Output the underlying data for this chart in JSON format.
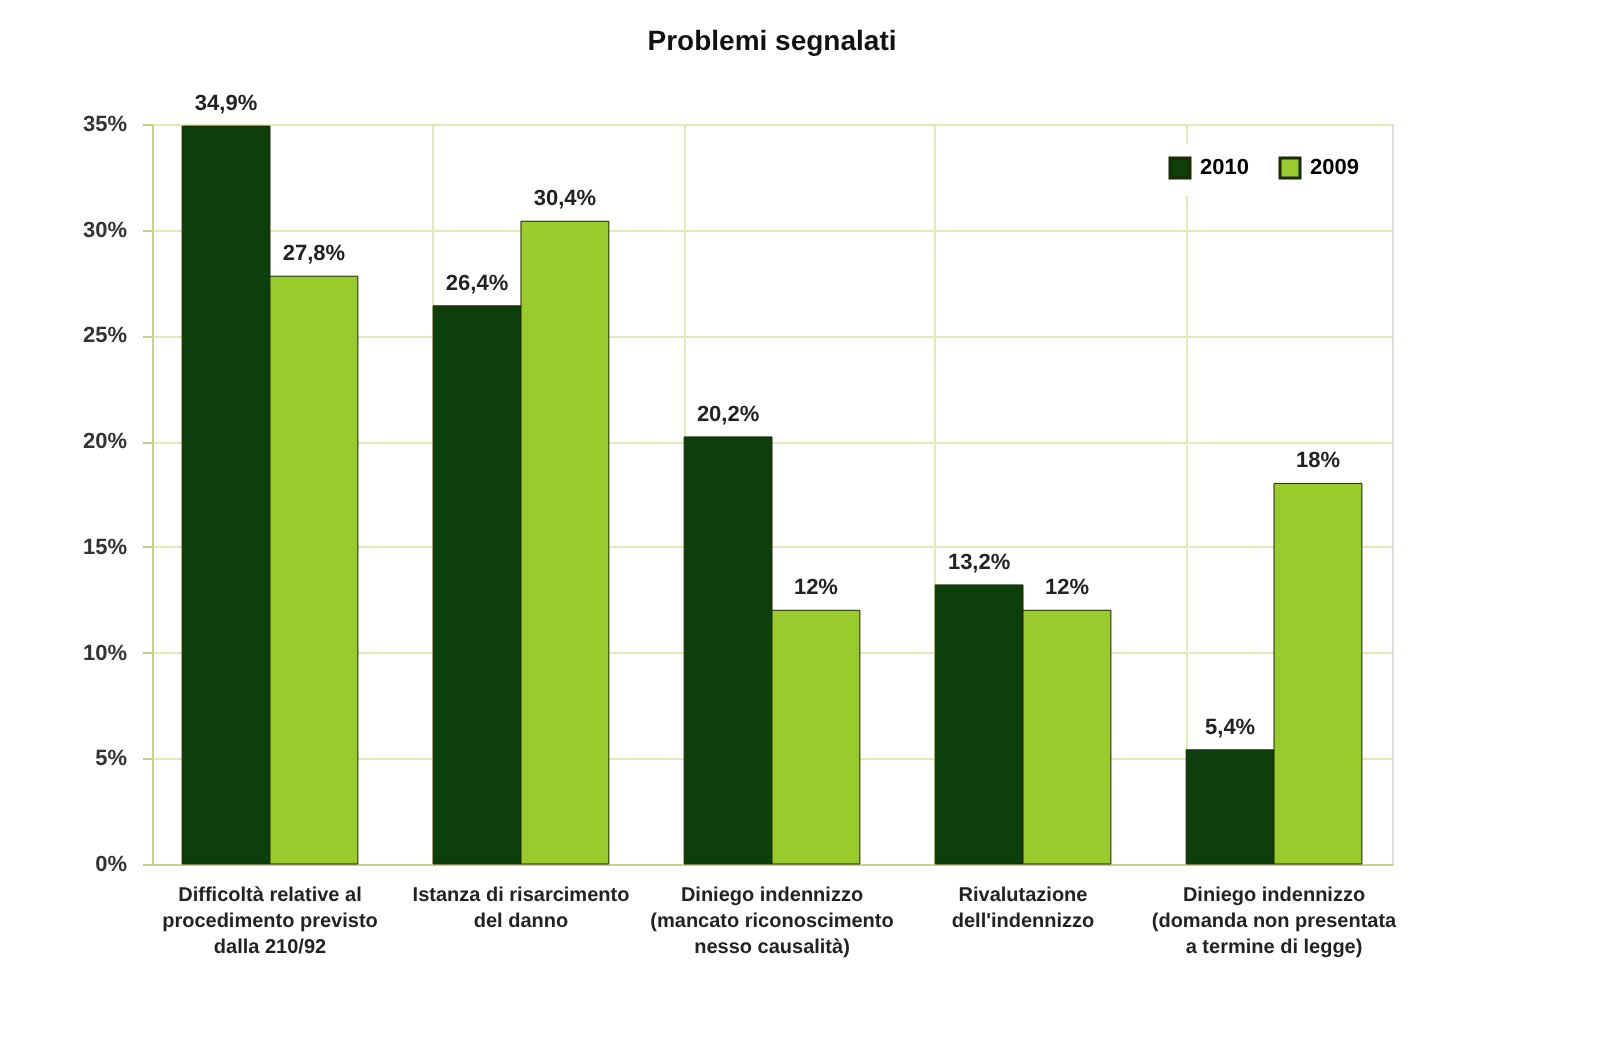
{
  "chart_data": {
    "type": "bar",
    "title": "Problemi segnalati",
    "categories": [
      "Difficoltà relative al procedimento previsto dalla 210/92",
      "Istanza di risarcimento del danno",
      "Diniego indennizzo (mancato riconoscimento nesso causalità)",
      "Rivalutazione dell'indennizzo",
      "Diniego indennizzo (domanda non presentata a termine di legge)"
    ],
    "series": [
      {
        "name": "2010",
        "color": "#0c3f0c",
        "values": [
          34.9,
          26.4,
          20.2,
          13.2,
          5.4
        ],
        "value_labels": [
          "34,9%",
          "26,4%",
          "20,2%",
          "13,2%",
          "5,4%"
        ]
      },
      {
        "name": "2009",
        "color": "#9acb2c",
        "values": [
          27.8,
          30.4,
          12,
          12,
          18
        ],
        "value_labels": [
          "27,8%",
          "30,4%",
          "12%",
          "12%",
          "18%"
        ]
      }
    ],
    "ylim": [
      0,
      35
    ],
    "yticks": [
      {
        "value": 0,
        "label": "0%"
      },
      {
        "value": 5,
        "label": "5%"
      },
      {
        "value": 10,
        "label": "10%"
      },
      {
        "value": 15,
        "label": "15%"
      },
      {
        "value": 20,
        "label": "20%"
      },
      {
        "value": 25,
        "label": "25%"
      },
      {
        "value": 30,
        "label": "30%"
      },
      {
        "value": 35,
        "label": "35%"
      }
    ],
    "grid": true,
    "legend": "top right"
  }
}
